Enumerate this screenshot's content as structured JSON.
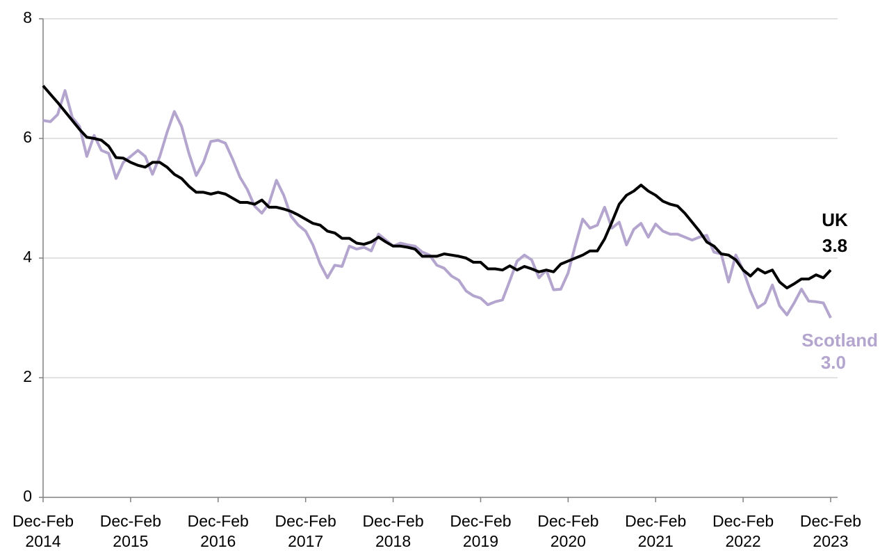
{
  "chart_data": {
    "type": "line",
    "categories": [
      "Dec-Feb 2014",
      null,
      null,
      null,
      null,
      null,
      null,
      null,
      null,
      null,
      null,
      null,
      "Dec-Feb 2015",
      null,
      null,
      null,
      null,
      null,
      null,
      null,
      null,
      null,
      null,
      null,
      "Dec-Feb 2016",
      null,
      null,
      null,
      null,
      null,
      null,
      null,
      null,
      null,
      null,
      null,
      "Dec-Feb 2017",
      null,
      null,
      null,
      null,
      null,
      null,
      null,
      null,
      null,
      null,
      null,
      "Dec-Feb 2018",
      null,
      null,
      null,
      null,
      null,
      null,
      null,
      null,
      null,
      null,
      null,
      "Dec-Feb 2019",
      null,
      null,
      null,
      null,
      null,
      null,
      null,
      null,
      null,
      null,
      null,
      "Dec-Feb 2020",
      null,
      null,
      null,
      null,
      null,
      null,
      null,
      null,
      null,
      null,
      null,
      "Dec-Feb 2021",
      null,
      null,
      null,
      null,
      null,
      null,
      null,
      null,
      null,
      null,
      null,
      "Dec-Feb 2022",
      null,
      null,
      null,
      null,
      null,
      null,
      null,
      null,
      null,
      null,
      null,
      "Dec-Feb 2023"
    ],
    "series": [
      {
        "name": "UK",
        "color": "#000000",
        "values": [
          6.88,
          6.74,
          6.6,
          6.45,
          6.3,
          6.15,
          6.02,
          6.0,
          5.97,
          5.87,
          5.68,
          5.67,
          5.6,
          5.55,
          5.52,
          5.6,
          5.6,
          5.52,
          5.4,
          5.33,
          5.2,
          5.1,
          5.1,
          5.07,
          5.1,
          5.07,
          5.0,
          4.93,
          4.93,
          4.9,
          4.97,
          4.85,
          4.85,
          4.82,
          4.78,
          4.72,
          4.65,
          4.58,
          4.55,
          4.45,
          4.42,
          4.33,
          4.33,
          4.25,
          4.23,
          4.27,
          4.35,
          4.27,
          4.2,
          4.2,
          4.18,
          4.15,
          4.03,
          4.03,
          4.03,
          4.07,
          4.05,
          4.03,
          4.0,
          3.93,
          3.93,
          3.82,
          3.82,
          3.8,
          3.87,
          3.8,
          3.86,
          3.82,
          3.77,
          3.8,
          3.77,
          3.9,
          3.95,
          4.0,
          4.05,
          4.12,
          4.12,
          4.32,
          4.6,
          4.9,
          5.05,
          5.12,
          5.22,
          5.12,
          5.05,
          4.95,
          4.9,
          4.87,
          4.75,
          4.6,
          4.45,
          4.27,
          4.2,
          4.07,
          4.05,
          3.97,
          3.8,
          3.7,
          3.82,
          3.75,
          3.8,
          3.6,
          3.5,
          3.57,
          3.65,
          3.65,
          3.72,
          3.67,
          3.8
        ]
      },
      {
        "name": "Scotland",
        "color": "#b4a5cf",
        "values": [
          6.3,
          6.28,
          6.4,
          6.8,
          6.35,
          6.2,
          5.7,
          6.05,
          5.8,
          5.75,
          5.33,
          5.6,
          5.7,
          5.8,
          5.7,
          5.4,
          5.7,
          6.1,
          6.45,
          6.2,
          5.75,
          5.38,
          5.6,
          5.95,
          5.97,
          5.92,
          5.65,
          5.35,
          5.15,
          4.87,
          4.75,
          4.92,
          5.3,
          5.05,
          4.7,
          4.55,
          4.45,
          4.22,
          3.9,
          3.67,
          3.88,
          3.86,
          4.2,
          4.15,
          4.18,
          4.12,
          4.4,
          4.3,
          4.2,
          4.25,
          4.22,
          4.2,
          4.1,
          4.05,
          3.88,
          3.83,
          3.7,
          3.63,
          3.45,
          3.37,
          3.33,
          3.22,
          3.27,
          3.3,
          3.62,
          3.95,
          4.05,
          3.97,
          3.67,
          3.8,
          3.47,
          3.48,
          3.75,
          4.22,
          4.65,
          4.5,
          4.55,
          4.85,
          4.5,
          4.6,
          4.22,
          4.48,
          4.58,
          4.35,
          4.57,
          4.45,
          4.4,
          4.4,
          4.35,
          4.3,
          4.35,
          4.38,
          4.1,
          4.07,
          3.6,
          4.05,
          3.8,
          3.45,
          3.17,
          3.25,
          3.55,
          3.2,
          3.05,
          3.25,
          3.48,
          3.28,
          3.27,
          3.25,
          3.0
        ],
        "value_labels": [
          null,
          null,
          null,
          null,
          null,
          null,
          null,
          null,
          null,
          null,
          null,
          null,
          null,
          null,
          null,
          null,
          null,
          null,
          null,
          null,
          null,
          null,
          null,
          null,
          null,
          null,
          null,
          null,
          null,
          null,
          null,
          null,
          null,
          null,
          null,
          null,
          null,
          null,
          null,
          null,
          null,
          null,
          null,
          null,
          null,
          null,
          null,
          null,
          null,
          null,
          null,
          null,
          null,
          null,
          null,
          null,
          null,
          null,
          null,
          null,
          null,
          null,
          null,
          null,
          null,
          null,
          null,
          null,
          null,
          null,
          null,
          null,
          null,
          null,
          null,
          null,
          null,
          null,
          null,
          null,
          null,
          null,
          null,
          null,
          null,
          null,
          null,
          null,
          null,
          null,
          null,
          null,
          null,
          null,
          null,
          null,
          null,
          null,
          null,
          null,
          null,
          null,
          null,
          null,
          null,
          null,
          null,
          null,
          "3.0"
        ]
      }
    ],
    "ylim": [
      0,
      8
    ],
    "yticks": [
      0,
      2,
      4,
      6,
      8
    ],
    "grid": true
  }
}
